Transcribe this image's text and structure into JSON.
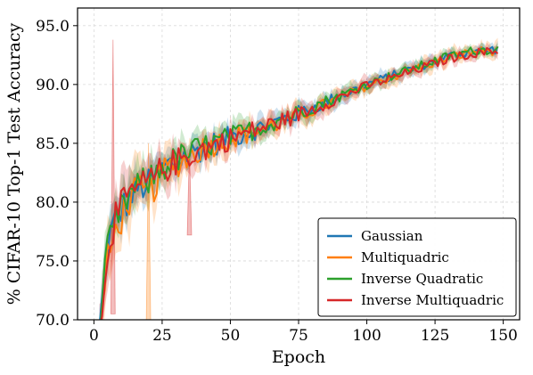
{
  "chart_data": {
    "type": "line",
    "title": "",
    "xlabel": "Epoch",
    "ylabel": "% CIFAR-10 Top-1 Test Accuracy",
    "xlim": [
      -6,
      156
    ],
    "ylim": [
      70,
      96.5
    ],
    "xticks": [
      0,
      25,
      50,
      75,
      100,
      125,
      150
    ],
    "yticks": [
      70.0,
      75.0,
      80.0,
      85.0,
      90.0,
      95.0
    ],
    "xtick_labels": [
      "0",
      "25",
      "50",
      "75",
      "100",
      "125",
      "150"
    ],
    "ytick_labels": [
      "70.0",
      "75.0",
      "80.0",
      "85.0",
      "90.0",
      "95.0"
    ],
    "grid": true,
    "legend_position": "lower-right",
    "series": [
      {
        "name": "Gaussian",
        "color": "#1f77b4",
        "x": [
          2,
          5,
          8,
          12,
          16,
          20,
          25,
          30,
          35,
          40,
          50,
          60,
          70,
          80,
          90,
          100,
          110,
          120,
          130,
          140,
          148
        ],
        "values": [
          69.0,
          76.5,
          78.5,
          80.0,
          81.2,
          81.5,
          82.8,
          83.5,
          84.1,
          84.6,
          85.5,
          86.2,
          87.1,
          88.0,
          89.0,
          90.0,
          90.8,
          91.6,
          92.4,
          92.9,
          93.0
        ],
        "band": [
          1.6,
          1.6,
          1.6,
          1.6,
          1.5,
          1.4,
          1.3,
          1.2,
          1.1,
          1.0,
          0.8,
          0.8,
          0.7,
          0.7,
          0.6,
          0.6,
          0.5,
          0.5,
          0.4,
          0.4,
          0.4
        ]
      },
      {
        "name": "Multiquadric",
        "color": "#ff7f0e",
        "x": [
          2,
          5,
          8,
          12,
          16,
          20,
          25,
          30,
          35,
          40,
          50,
          60,
          70,
          80,
          90,
          100,
          110,
          120,
          130,
          140,
          148
        ],
        "values": [
          68.5,
          75.0,
          77.5,
          79.8,
          81.0,
          80.5,
          82.5,
          83.2,
          83.9,
          84.6,
          85.4,
          86.1,
          86.9,
          87.8,
          88.8,
          89.9,
          90.7,
          91.5,
          92.3,
          92.8,
          92.9
        ],
        "band": [
          2.2,
          2.2,
          2.1,
          2.0,
          2.0,
          1.8,
          1.6,
          1.4,
          1.3,
          1.2,
          1.0,
          0.9,
          0.8,
          0.8,
          0.7,
          0.7,
          0.6,
          0.6,
          0.6,
          0.6,
          0.6
        ]
      },
      {
        "name": "Inverse Quadratic",
        "color": "#2ca02c",
        "x": [
          2,
          5,
          8,
          12,
          16,
          20,
          25,
          30,
          35,
          40,
          50,
          60,
          70,
          80,
          90,
          100,
          110,
          120,
          130,
          140,
          148
        ],
        "values": [
          69.2,
          75.8,
          78.2,
          80.3,
          81.3,
          81.8,
          82.9,
          83.6,
          84.2,
          84.7,
          85.5,
          86.3,
          87.2,
          88.1,
          89.0,
          90.0,
          90.8,
          91.6,
          92.4,
          92.9,
          93.0
        ],
        "band": [
          1.7,
          1.7,
          1.7,
          1.6,
          1.5,
          1.4,
          1.3,
          1.2,
          1.1,
          1.0,
          0.9,
          0.8,
          0.7,
          0.7,
          0.6,
          0.6,
          0.5,
          0.5,
          0.4,
          0.4,
          0.4
        ]
      },
      {
        "name": "Inverse Multiquadric",
        "color": "#d62728",
        "x": [
          2,
          5,
          8,
          12,
          16,
          20,
          25,
          30,
          35,
          40,
          50,
          60,
          70,
          80,
          90,
          100,
          110,
          120,
          130,
          140,
          148
        ],
        "values": [
          68.8,
          76.2,
          78.8,
          80.2,
          81.2,
          81.6,
          82.7,
          83.4,
          84.0,
          84.5,
          85.4,
          86.2,
          87.0,
          87.9,
          88.9,
          89.9,
          90.6,
          91.4,
          92.2,
          92.7,
          92.8
        ],
        "band": [
          1.9,
          1.9,
          1.8,
          1.7,
          1.6,
          1.5,
          1.4,
          1.3,
          1.1,
          1.0,
          0.9,
          0.8,
          0.8,
          0.7,
          0.6,
          0.6,
          0.5,
          0.5,
          0.5,
          0.4,
          0.4
        ]
      }
    ],
    "spikes": [
      {
        "series": "Inverse Multiquadric",
        "x": 7,
        "low": 70.5,
        "high": 93.8
      },
      {
        "series": "Multiquadric",
        "x": 20,
        "low": 70.0,
        "high": 85.0
      },
      {
        "series": "Inverse Multiquadric",
        "x": 35,
        "low": 77.2,
        "high": 84.5
      }
    ]
  }
}
